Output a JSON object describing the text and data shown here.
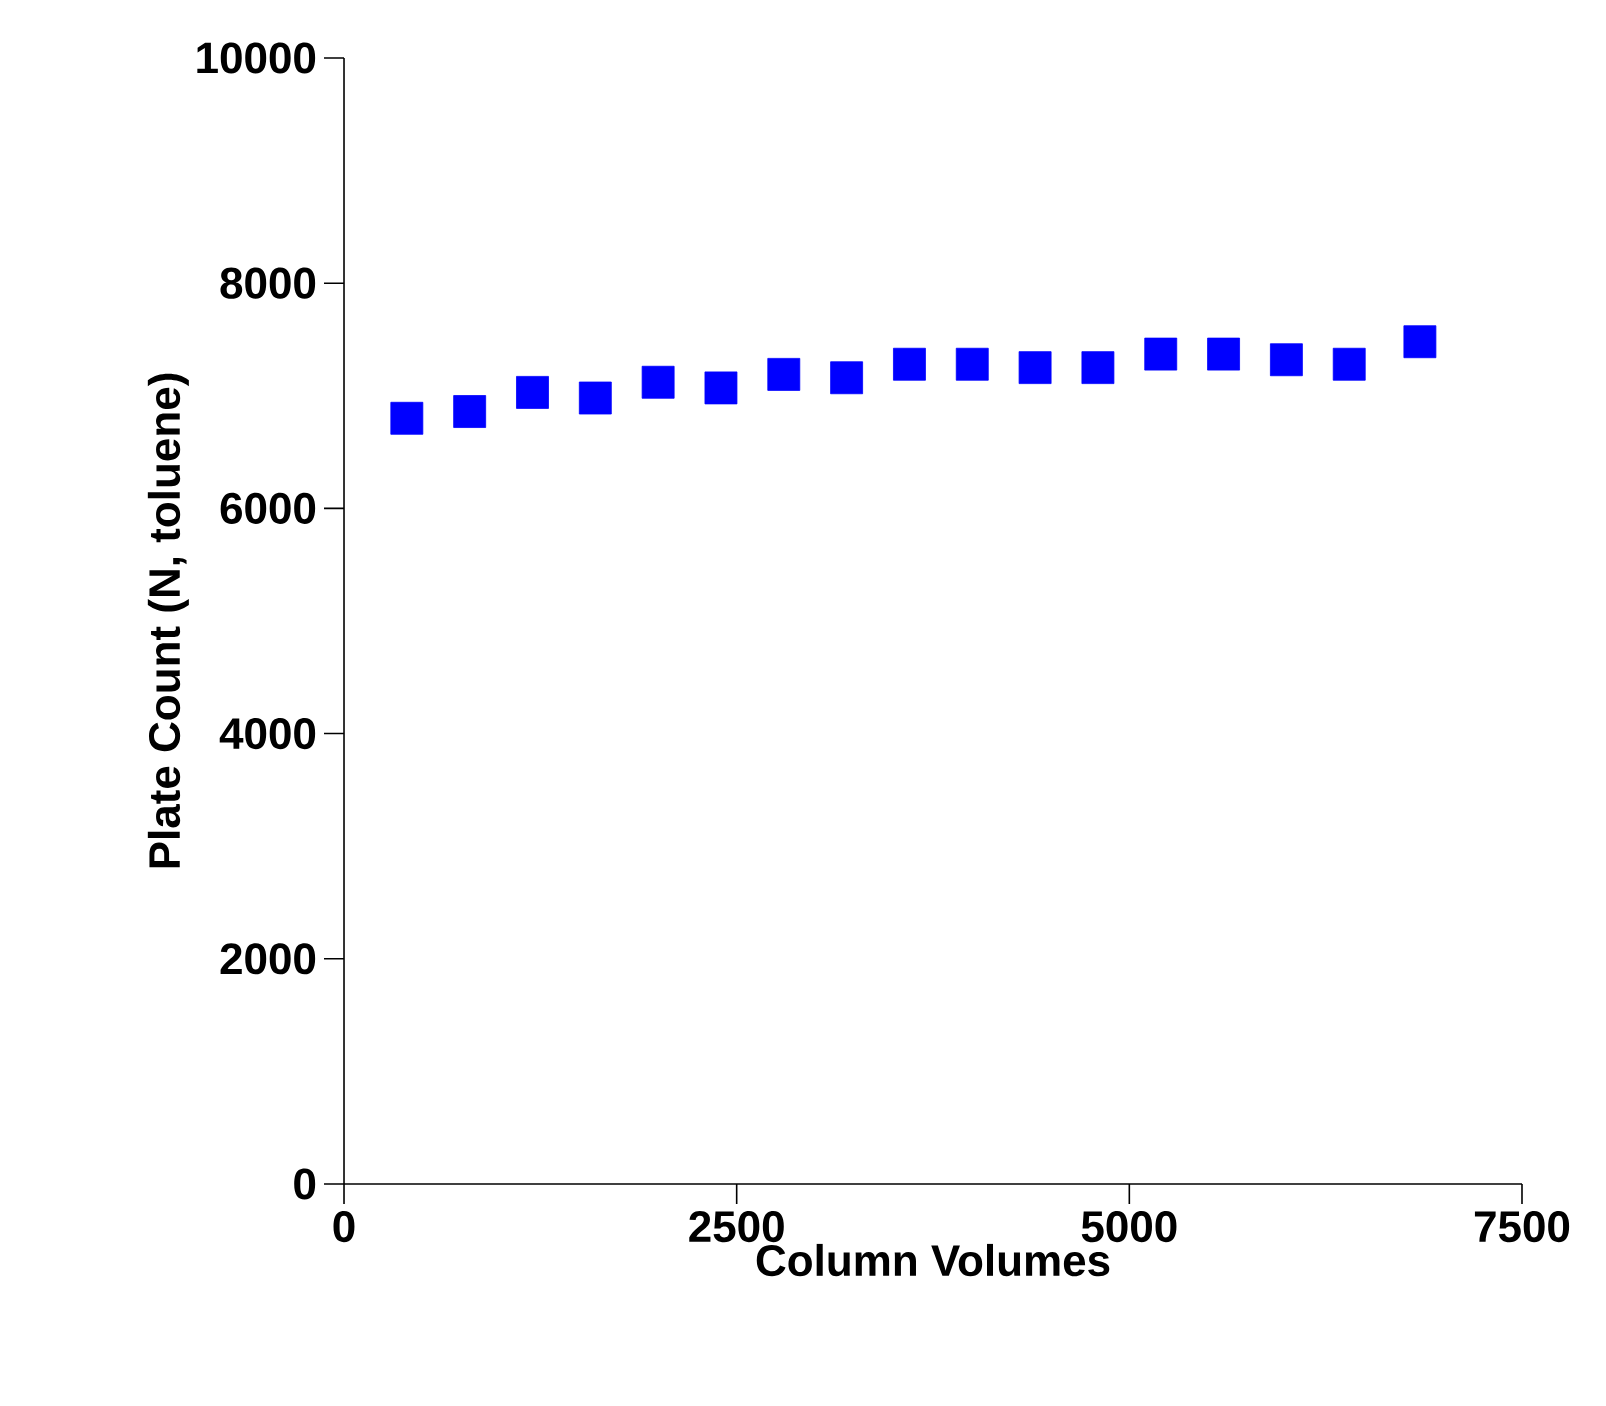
{
  "chart_data": {
    "type": "scatter",
    "xlabel": "Column Volumes",
    "ylabel": "Plate Count (N, toluene)",
    "x": [
      400,
      800,
      1200,
      1600,
      2000,
      2400,
      2800,
      3200,
      3600,
      4000,
      4400,
      4800,
      5200,
      5600,
      6000,
      6400,
      6850
    ],
    "values": [
      6800,
      6860,
      7030,
      6980,
      7120,
      7070,
      7190,
      7160,
      7280,
      7280,
      7250,
      7250,
      7370,
      7370,
      7320,
      7280,
      7480
    ],
    "color": "#0000ff",
    "marker": "square",
    "xlim": [
      0,
      7500
    ],
    "xticks": [
      0,
      2500,
      5000,
      7500
    ],
    "ylim": [
      0,
      10000
    ],
    "yticks": [
      0,
      2000,
      4000,
      6000,
      8000,
      10000
    ],
    "grid": false
  }
}
